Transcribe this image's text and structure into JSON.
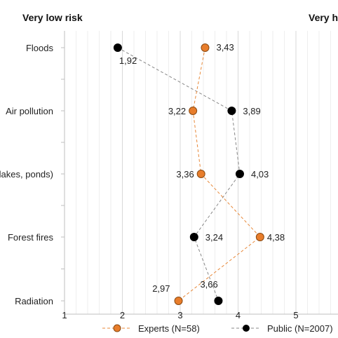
{
  "chart_data": {
    "type": "scatter",
    "title": "",
    "scale_left_label": "Very low risk",
    "scale_right_label": "Very high risk",
    "categories": [
      "Floods",
      "Air pollution",
      "Water pollution (rivers, lakes, ponds)",
      "Forest fires",
      "Radiation"
    ],
    "xlim": [
      1,
      5.8
    ],
    "x_ticks": [
      "1",
      "2",
      "3",
      "4",
      "5"
    ],
    "grid": true,
    "legend_position": "bottom",
    "series": [
      {
        "name": "Experts (N=58)",
        "values": [
          3.43,
          3.22,
          3.36,
          4.38,
          2.97
        ],
        "labels": [
          "3,43",
          "3,22",
          "3,36",
          "4,38",
          "2,97"
        ],
        "color": "#e87d2b",
        "line_color": "#e8893a"
      },
      {
        "name": "Public (N=2007)",
        "values": [
          1.92,
          3.89,
          4.03,
          3.24,
          3.66
        ],
        "labels": [
          "1,92",
          "3,89",
          "4,03",
          "3,24",
          "3,66"
        ],
        "color": "#000000",
        "line_color": "#888888"
      }
    ]
  }
}
